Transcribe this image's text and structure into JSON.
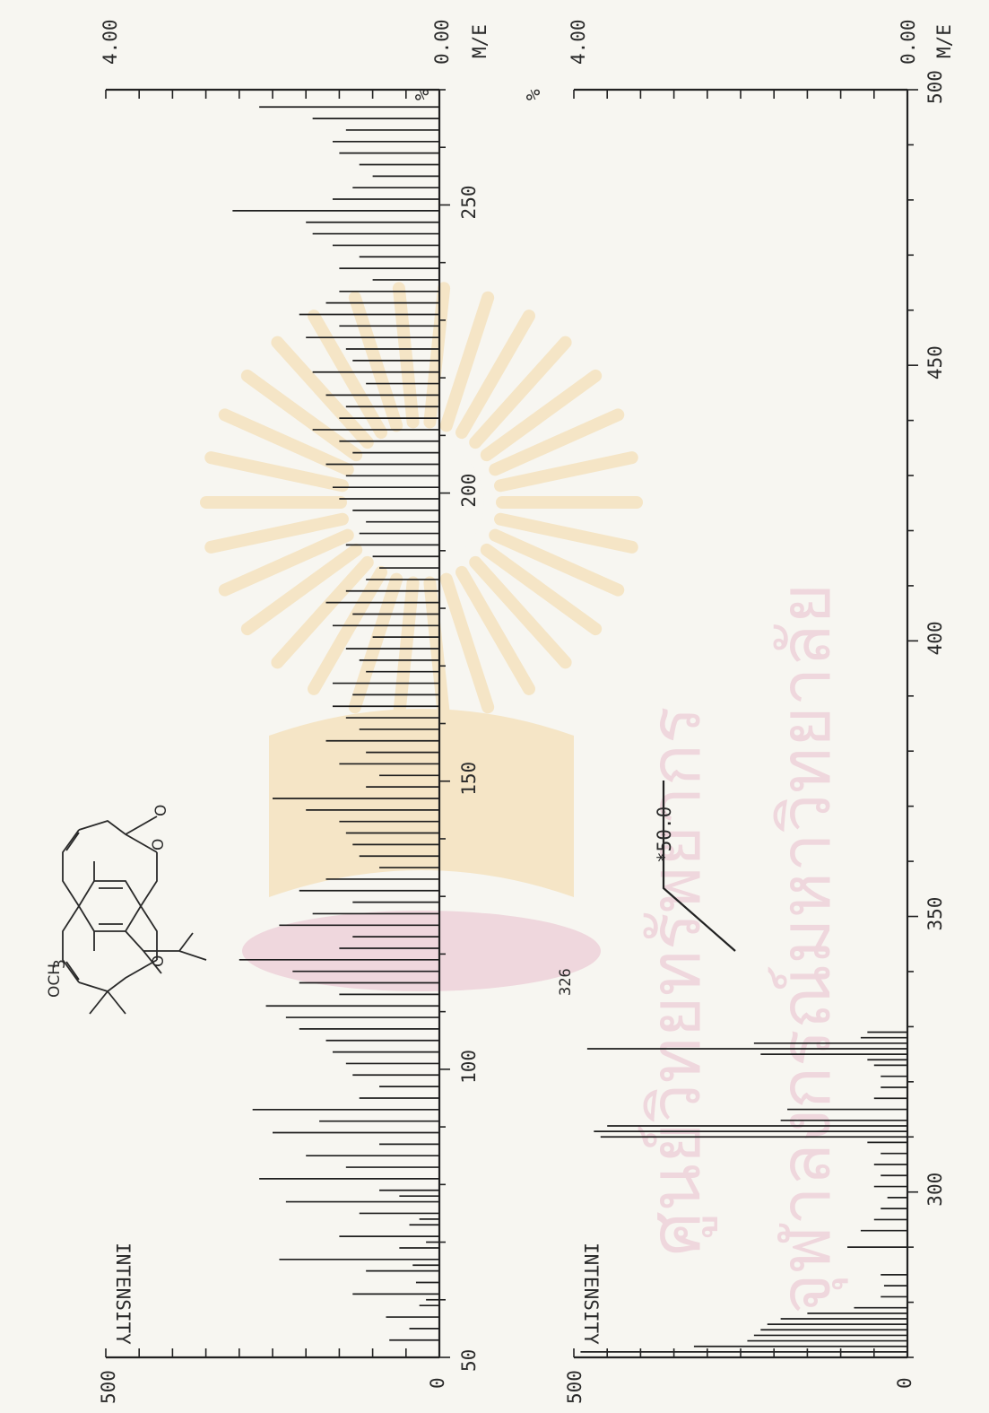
{
  "colors": {
    "ink": "#1e1e1e",
    "paper": "#f7f6f1",
    "watermark_gold": "#f3d49a",
    "watermark_pink": "#e7b9c8"
  },
  "watermark": {
    "icon": "emblem-icon",
    "line1": "ศูนย์วิทยทรัพยากร",
    "line2": "จุฬาลงกรณ์มหาวิทยาลัย"
  },
  "structure": {
    "icon": "chemical-structure-icon",
    "methoxy": "OCH",
    "methoxy_sub": "3",
    "oxygen_ring1": "O",
    "oxygen_ring2": "O",
    "oxygen_carbonyl": "O"
  },
  "chart_data": [
    {
      "type": "bar",
      "panel": "upper",
      "xlabel": "M/E",
      "ylabel": "INTENSITY",
      "y2label": "%",
      "xlim": [
        50,
        270
      ],
      "ylim": [
        0,
        500
      ],
      "y2_ticks": [
        "4.00",
        "0.00"
      ],
      "x_ticks": [
        50,
        100,
        150,
        200,
        250
      ],
      "y_ticks": [
        0,
        500
      ],
      "series": [
        {
          "x": [
            53,
            55,
            57,
            59,
            60,
            61,
            63,
            65,
            66,
            67,
            69,
            70,
            71,
            73,
            74,
            75,
            77,
            78,
            79,
            81,
            83,
            85,
            87,
            89,
            91,
            93,
            95,
            97,
            99,
            101,
            103,
            105,
            107,
            109,
            111,
            113,
            115,
            117,
            119,
            121,
            123,
            125,
            127,
            129,
            131,
            133,
            135,
            137,
            139,
            141,
            143,
            145,
            147,
            149,
            151,
            153,
            155,
            157,
            159,
            161,
            163,
            165,
            167,
            169,
            171,
            173,
            175,
            177,
            179,
            181,
            183,
            185,
            187,
            189,
            191,
            193,
            195,
            197,
            199,
            201,
            203,
            205,
            207,
            209,
            211,
            213,
            215,
            217,
            219,
            221,
            223,
            225,
            227,
            229,
            231,
            233,
            235,
            237,
            239,
            241,
            243,
            245,
            247,
            249,
            251,
            253,
            255,
            257,
            259,
            261,
            263,
            265,
            267
          ],
          "y": [
            75,
            45,
            80,
            30,
            20,
            130,
            35,
            110,
            40,
            240,
            60,
            20,
            150,
            45,
            30,
            120,
            230,
            60,
            90,
            270,
            140,
            200,
            90,
            250,
            180,
            280,
            120,
            90,
            130,
            140,
            160,
            170,
            210,
            230,
            260,
            150,
            210,
            220,
            300,
            150,
            130,
            240,
            190,
            130,
            210,
            170,
            90,
            120,
            130,
            140,
            150,
            200,
            250,
            110,
            90,
            150,
            110,
            170,
            120,
            140,
            160,
            130,
            160,
            110,
            120,
            140,
            100,
            160,
            130,
            170,
            140,
            110,
            90,
            100,
            140,
            120,
            110,
            130,
            150,
            160,
            140,
            170,
            130,
            150,
            190,
            150,
            140,
            170,
            110,
            190,
            130,
            140,
            200,
            150,
            210,
            170,
            150,
            100,
            150,
            120,
            160,
            190,
            200,
            310,
            160,
            130,
            100,
            120,
            150,
            160,
            140,
            190,
            270
          ]
        }
      ]
    },
    {
      "type": "bar",
      "panel": "lower",
      "xlabel": "M/E",
      "ylabel": "INTENSITY",
      "y2label": "%",
      "xlim": [
        270,
        500
      ],
      "ylim": [
        0,
        500
      ],
      "y2_ticks": [
        "4.00",
        "0.00"
      ],
      "x_ticks": [
        300,
        350,
        400,
        450,
        500
      ],
      "x_tick_labels": [
        "300",
        "350",
        "400",
        "450",
        "500"
      ],
      "y_ticks": [
        0,
        500
      ],
      "magnification": "*50.0",
      "annotations": [
        {
          "x": 326,
          "text": "326"
        }
      ],
      "series": [
        {
          "x": [
            271,
            272,
            273,
            274,
            275,
            276,
            277,
            278,
            279,
            281,
            283,
            285,
            290,
            293,
            295,
            297,
            299,
            301,
            303,
            305,
            307,
            309,
            310,
            311,
            312,
            313,
            315,
            317,
            319,
            321,
            323,
            324,
            325,
            326,
            327,
            328,
            329
          ],
          "y": [
            490,
            320,
            240,
            230,
            220,
            210,
            190,
            150,
            80,
            40,
            35,
            40,
            90,
            70,
            50,
            40,
            30,
            50,
            40,
            50,
            40,
            60,
            460,
            470,
            450,
            190,
            180,
            50,
            40,
            40,
            50,
            60,
            220,
            480,
            230,
            70,
            60
          ]
        }
      ]
    }
  ]
}
